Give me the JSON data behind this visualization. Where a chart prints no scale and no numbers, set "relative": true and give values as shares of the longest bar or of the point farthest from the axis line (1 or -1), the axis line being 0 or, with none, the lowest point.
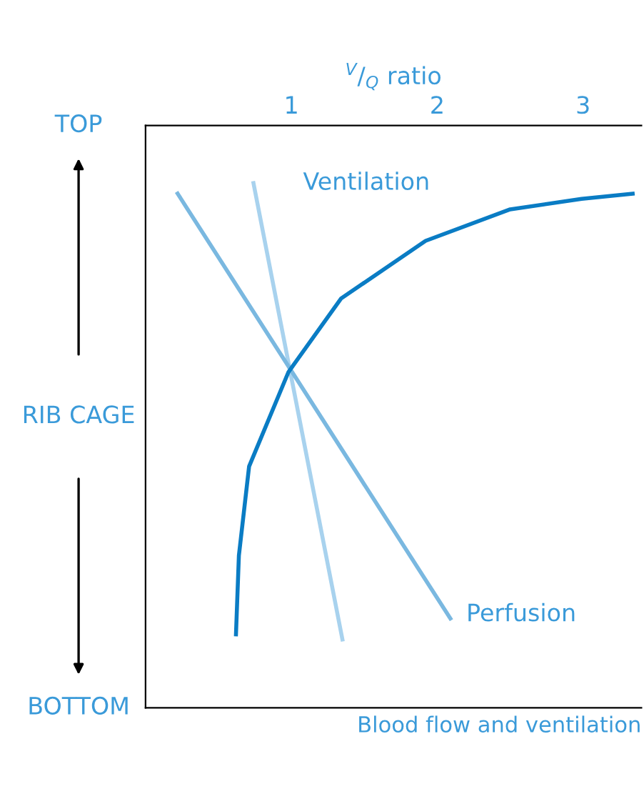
{
  "chart_data": {
    "type": "line",
    "x2label": "$^{V}$/$_{Q}$ ratio",
    "xlabel": "Blood flow and ventilation",
    "ylabel": "RIB CAGE",
    "xlim": [
      0,
      3.4
    ],
    "xticks": [
      1,
      2,
      3
    ],
    "relative": true,
    "annotations": [
      "TOP",
      "BOTTOM"
    ],
    "legend": false,
    "marker": "none",
    "line_style": "solid",
    "series": [
      {
        "name": "Ventilation",
        "color": "#a8d2ee",
        "x": [
          0.74,
          1.35
        ],
        "values": [
          1,
          0.13
        ]
      },
      {
        "name": "Perfusion",
        "color": "#7ab8e0",
        "x": [
          0.22,
          2.09
        ],
        "values": [
          0.98,
          0.17
        ]
      },
      {
        "color": "#0a7cc4",
        "x": [
          0.62,
          0.64,
          0.71,
          0.98,
          1.34,
          1.92,
          2.5,
          2.99,
          3.34
        ],
        "values": [
          0.14,
          0.29,
          0.46,
          0.64,
          0.78,
          0.89,
          0.95,
          0.97,
          0.98
        ]
      }
    ]
  }
}
